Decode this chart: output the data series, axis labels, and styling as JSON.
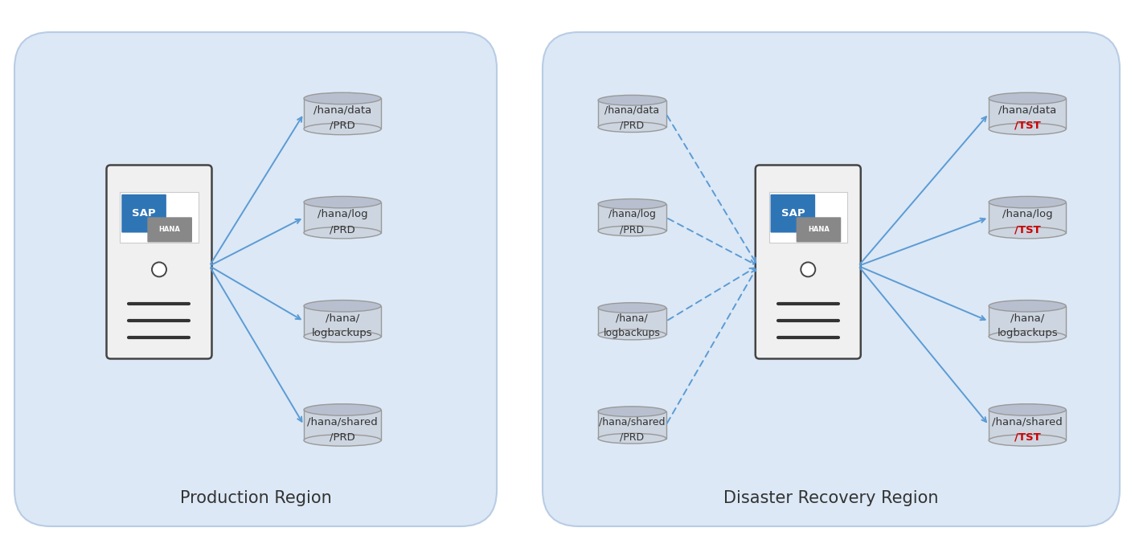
{
  "bg_color": "#dce8f5",
  "cylinder_fill": "#cdd5e0",
  "cylinder_top": "#b8c0d0",
  "cylinder_edge": "#999999",
  "arrow_color": "#5b9bd5",
  "text_color": "#333333",
  "red_color": "#cc0000",
  "title_fontsize": 15,
  "label_fontsize": 9.5,
  "prod_title": "Production Region",
  "dr_title": "Disaster Recovery Region",
  "prod_volumes": [
    "/hana/data\n/PRD",
    "/hana/log\n/PRD",
    "/hana/\nlogbackups",
    "/hana/shared\n/PRD"
  ],
  "dr_left_volumes": [
    "/hana/data\n/PRD",
    "/hana/log\n/PRD",
    "/hana/\nlogbackups",
    "/hana/shared\n/PRD"
  ],
  "dr_right_vol_l1": [
    "/hana/data",
    "/hana/log",
    "/hana/",
    "/hana/shared"
  ],
  "dr_right_vol_l2": [
    "/TST",
    "/TST",
    "logbackups",
    "/TST"
  ],
  "dr_right_red": [
    true,
    true,
    false,
    true
  ],
  "fig_width": 14.12,
  "fig_height": 6.77,
  "dpi": 100
}
